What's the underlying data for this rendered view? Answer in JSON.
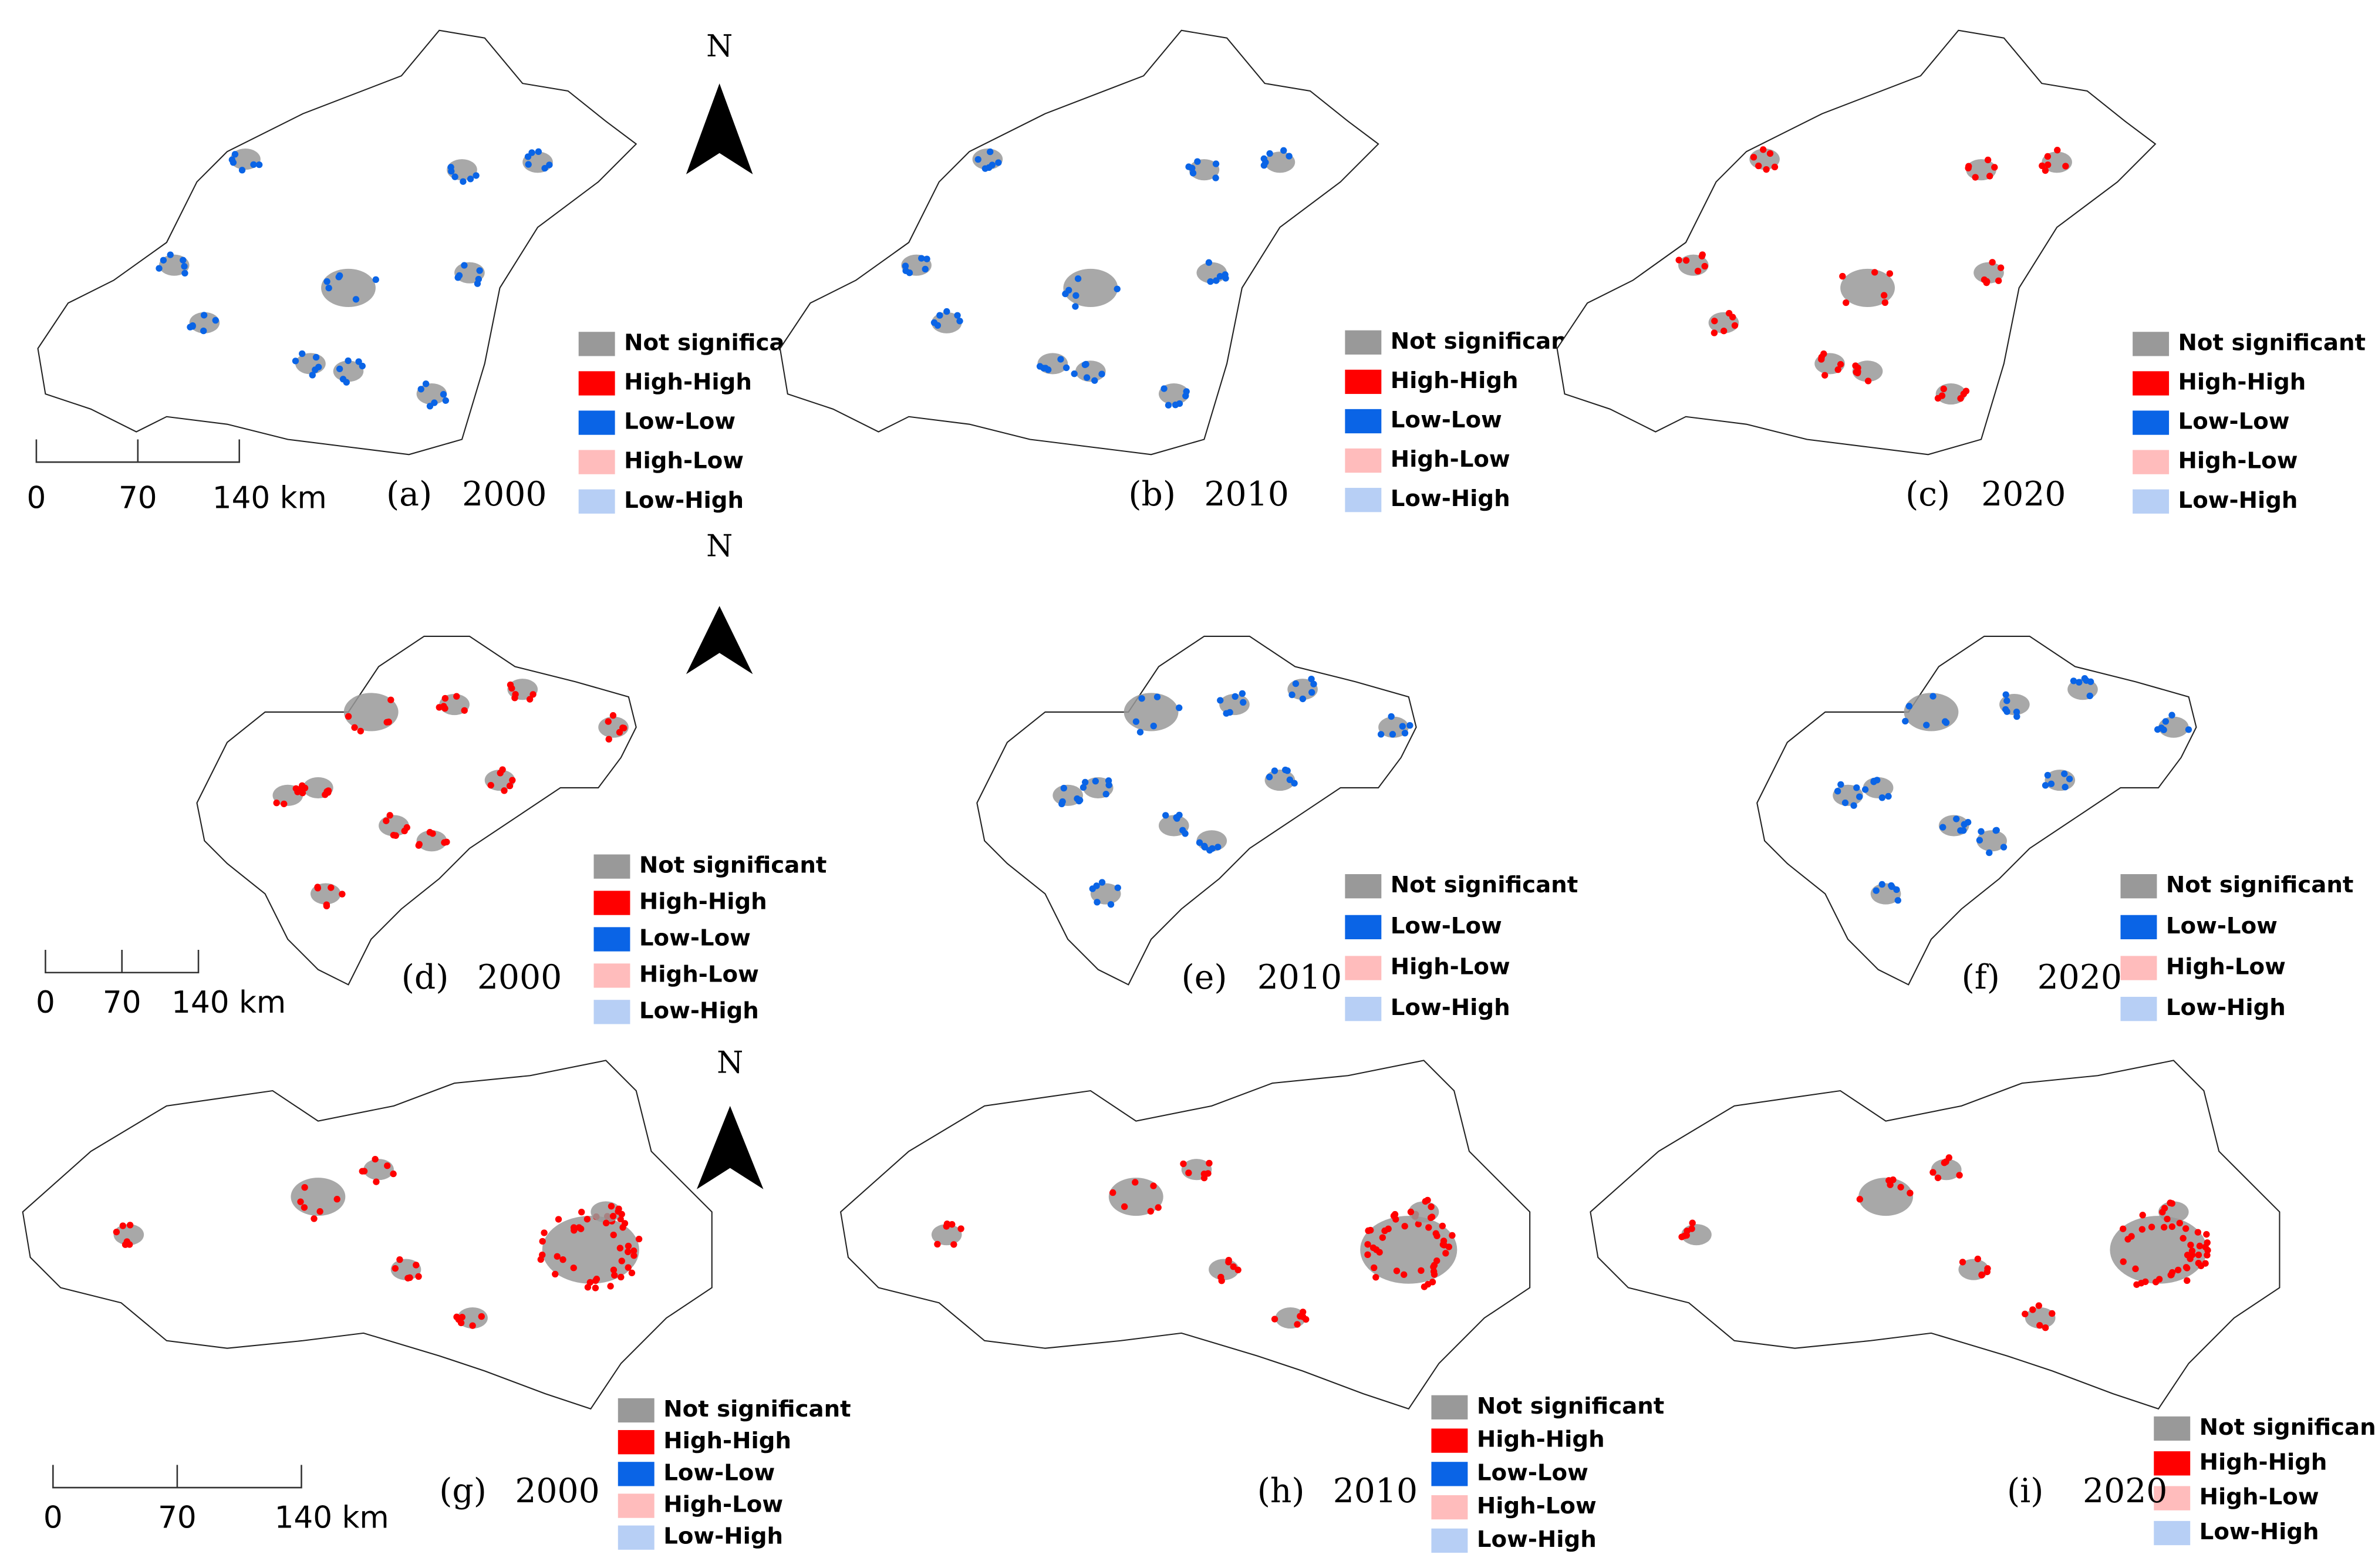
{
  "rows": [
    {
      "north": "N",
      "scale_bar": [
        "0",
        "70",
        "140 km"
      ],
      "panels": [
        {
          "label": "(a)",
          "year": "2000",
          "legend": [
            {
              "name": "Not significant",
              "color": "#999999"
            },
            {
              "name": "High-High",
              "color": "#ff0000"
            },
            {
              "name": "Low-Low",
              "color": "#0a64e6"
            },
            {
              "name": "High-Low",
              "color": "#ffbcbc"
            },
            {
              "name": "Low-High",
              "color": "#b7cff5"
            }
          ]
        },
        {
          "label": "(b)",
          "year": "2010",
          "legend": [
            {
              "name": "Not significant",
              "color": "#999999"
            },
            {
              "name": "High-High",
              "color": "#ff0000"
            },
            {
              "name": "Low-Low",
              "color": "#0a64e6"
            },
            {
              "name": "High-Low",
              "color": "#ffbcbc"
            },
            {
              "name": "Low-High",
              "color": "#b7cff5"
            }
          ]
        },
        {
          "label": "(c)",
          "year": "2020",
          "legend": [
            {
              "name": "Not significant",
              "color": "#999999"
            },
            {
              "name": "High-High",
              "color": "#ff0000"
            },
            {
              "name": "Low-Low",
              "color": "#0a64e6"
            },
            {
              "name": "High-Low",
              "color": "#ffbcbc"
            },
            {
              "name": "Low-High",
              "color": "#b7cff5"
            }
          ]
        }
      ]
    },
    {
      "north": "N",
      "scale_bar": [
        "0",
        "70",
        "140 km"
      ],
      "panels": [
        {
          "label": "(d)",
          "year": "2000",
          "legend": [
            {
              "name": "Not significant",
              "color": "#999999"
            },
            {
              "name": "High-High",
              "color": "#ff0000"
            },
            {
              "name": "Low-Low",
              "color": "#0a64e6"
            },
            {
              "name": "High-Low",
              "color": "#ffbcbc"
            },
            {
              "name": "Low-High",
              "color": "#b7cff5"
            }
          ]
        },
        {
          "label": "(e)",
          "year": "2010",
          "legend": [
            {
              "name": "Not significant",
              "color": "#999999"
            },
            {
              "name": "Low-Low",
              "color": "#0a64e6"
            },
            {
              "name": "High-Low",
              "color": "#ffbcbc"
            },
            {
              "name": "Low-High",
              "color": "#b7cff5"
            }
          ]
        },
        {
          "label": "(f)",
          "year": "2020",
          "legend": [
            {
              "name": "Not significant",
              "color": "#999999"
            },
            {
              "name": "Low-Low",
              "color": "#0a64e6"
            },
            {
              "name": "High-Low",
              "color": "#ffbcbc"
            },
            {
              "name": "Low-High",
              "color": "#b7cff5"
            }
          ]
        }
      ]
    },
    {
      "north": "N",
      "scale_bar": [
        "0",
        "70",
        "140 km"
      ],
      "panels": [
        {
          "label": "(g)",
          "year": "2000",
          "legend": [
            {
              "name": "Not significant",
              "color": "#999999"
            },
            {
              "name": "High-High",
              "color": "#ff0000"
            },
            {
              "name": "Low-Low",
              "color": "#0a64e6"
            },
            {
              "name": "High-Low",
              "color": "#ffbcbc"
            },
            {
              "name": "Low-High",
              "color": "#b7cff5"
            }
          ]
        },
        {
          "label": "(h)",
          "year": "2010",
          "legend": [
            {
              "name": "Not significant",
              "color": "#999999"
            },
            {
              "name": "High-High",
              "color": "#ff0000"
            },
            {
              "name": "Low-Low",
              "color": "#0a64e6"
            },
            {
              "name": "High-Low",
              "color": "#ffbcbc"
            },
            {
              "name": "Low-High",
              "color": "#b7cff5"
            }
          ]
        },
        {
          "label": "(i)",
          "year": "2020",
          "legend": [
            {
              "name": "Not significant",
              "color": "#999999"
            },
            {
              "name": "High-High",
              "color": "#ff0000"
            },
            {
              "name": "High-Low",
              "color": "#ffbcbc"
            },
            {
              "name": "Low-High",
              "color": "#b7cff5"
            }
          ]
        }
      ]
    }
  ]
}
